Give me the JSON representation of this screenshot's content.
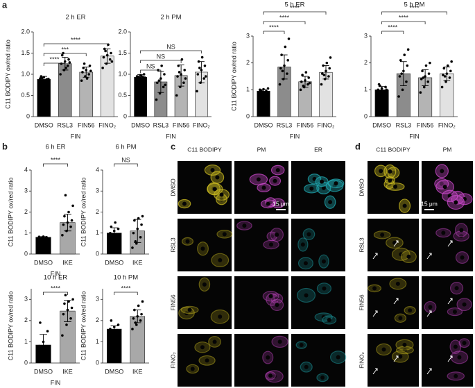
{
  "chart_data": [
    {
      "type": "bar",
      "title": "2 h ER",
      "ylabel": "C11 BODIPY ox/red ratio",
      "xlabel": "FIN",
      "categories": [
        "DMSO",
        "RSL3",
        "FIN56",
        "FINO₂"
      ],
      "colors": [
        "#000000",
        "#8c8c8c",
        "#b4b4b4",
        "#e2e2e2"
      ],
      "values": [
        0.88,
        1.25,
        1.05,
        1.43
      ],
      "errors": [
        0.07,
        0.15,
        0.12,
        0.17
      ],
      "points": [
        [
          0.82,
          0.85,
          0.88,
          0.9,
          0.93,
          0.86,
          0.95,
          0.8,
          0.89,
          0.91
        ],
        [
          1.0,
          1.1,
          1.2,
          1.25,
          1.3,
          1.35,
          1.45,
          1.15,
          1.28,
          1.5
        ],
        [
          0.85,
          0.95,
          1.0,
          1.05,
          1.1,
          1.2,
          1.15,
          0.9,
          1.08,
          1.25
        ],
        [
          1.15,
          1.25,
          1.35,
          1.4,
          1.45,
          1.5,
          1.6,
          1.7,
          1.3,
          1.55
        ]
      ],
      "ylim": [
        0,
        2
      ],
      "yticks": [
        0,
        0.5,
        {
          "value": 1,
          "label": "1.0"
        },
        1.5,
        {
          "value": 2,
          "label": "2.0"
        }
      ],
      "comparisons": [
        {
          "pair": [
            0,
            1
          ],
          "label": "****"
        },
        {
          "pair": [
            0,
            2
          ],
          "label": "***"
        },
        {
          "pair": [
            0,
            3
          ],
          "label": "****"
        }
      ]
    },
    {
      "type": "bar",
      "title": "2 h PM",
      "xlabel": "FIN",
      "categories": [
        "DMSO",
        "RSL3",
        "FIN56",
        "FINO₂"
      ],
      "colors": [
        "#000000",
        "#8c8c8c",
        "#b4b4b4",
        "#e2e2e2"
      ],
      "values": [
        0.93,
        0.82,
        0.97,
        1.05
      ],
      "errors": [
        0.06,
        0.25,
        0.25,
        0.25
      ],
      "points": [
        [
          0.85,
          0.9,
          0.93,
          0.95,
          0.98,
          1.0,
          0.88,
          0.96,
          0.92,
          0.94
        ],
        [
          0.4,
          0.55,
          0.7,
          0.8,
          0.9,
          1.0,
          1.1,
          1.2,
          0.75,
          0.85
        ],
        [
          0.5,
          0.7,
          0.8,
          0.95,
          1.0,
          1.1,
          1.2,
          1.35,
          0.9,
          1.05
        ],
        [
          0.6,
          0.8,
          0.9,
          1.0,
          1.1,
          1.2,
          1.3,
          1.4,
          0.95,
          1.15
        ]
      ],
      "ylim": [
        0,
        2
      ],
      "yticks": [
        0,
        0.5,
        {
          "value": 1,
          "label": "1.0"
        },
        1.5,
        {
          "value": 2,
          "label": "2.0"
        }
      ],
      "comparisons": [
        {
          "pair": [
            0,
            1
          ],
          "label": "NS"
        },
        {
          "pair": [
            0,
            2
          ],
          "label": "NS"
        },
        {
          "pair": [
            0,
            3
          ],
          "label": "NS"
        }
      ]
    },
    {
      "type": "bar",
      "title": "5 h ER",
      "ylabel": "C11 BODIPY ox/red ratio",
      "xlabel": "FIN",
      "categories": [
        "DMSO",
        "RSL3",
        "FIN56",
        "FINO₂"
      ],
      "colors": [
        "#000000",
        "#8c8c8c",
        "#b4b4b4",
        "#e2e2e2"
      ],
      "values": [
        0.95,
        1.85,
        1.3,
        1.65
      ],
      "errors": [
        0.06,
        0.45,
        0.2,
        0.25
      ],
      "points": [
        [
          0.85,
          0.9,
          0.95,
          1.0,
          1.02,
          0.92,
          0.97,
          0.88,
          1.05,
          0.94
        ],
        [
          1.2,
          1.4,
          1.6,
          1.8,
          1.9,
          2.1,
          2.3,
          2.6,
          2.9,
          1.7
        ],
        [
          1.0,
          1.1,
          1.2,
          1.3,
          1.35,
          1.45,
          1.55,
          1.65,
          1.25,
          1.15
        ],
        [
          1.2,
          1.4,
          1.5,
          1.6,
          1.7,
          1.8,
          1.9,
          2.0,
          2.2,
          1.55
        ]
      ],
      "ylim": [
        0,
        3
      ],
      "yticks": [
        0,
        1,
        2,
        3
      ],
      "comparisons": [
        {
          "pair": [
            0,
            1
          ],
          "label": "****"
        },
        {
          "pair": [
            0,
            2
          ],
          "label": "****"
        },
        {
          "pair": [
            0,
            3
          ],
          "label": "****"
        }
      ]
    },
    {
      "type": "bar",
      "title": "5 h PM",
      "xlabel": "FIN",
      "categories": [
        "DMSO",
        "RSL3",
        "FIN56",
        "FINO₂"
      ],
      "colors": [
        "#000000",
        "#8c8c8c",
        "#b4b4b4",
        "#e2e2e2"
      ],
      "values": [
        1.0,
        1.6,
        1.45,
        1.6
      ],
      "errors": [
        0.12,
        0.45,
        0.3,
        0.25
      ],
      "points": [
        [
          0.8,
          0.9,
          0.95,
          1.0,
          1.05,
          1.1,
          1.2,
          0.85,
          1.0,
          1.15
        ],
        [
          0.75,
          1.0,
          1.3,
          1.5,
          1.7,
          1.9,
          2.1,
          2.3,
          2.5,
          1.6
        ],
        [
          0.9,
          1.1,
          1.3,
          1.4,
          1.5,
          1.6,
          1.7,
          1.9,
          2.0,
          1.45
        ],
        [
          1.1,
          1.3,
          1.45,
          1.55,
          1.6,
          1.7,
          1.8,
          1.9,
          2.05,
          1.5
        ]
      ],
      "ylim": [
        0,
        3
      ],
      "yticks": [
        0,
        1,
        2,
        3
      ],
      "comparisons": [
        {
          "pair": [
            0,
            1
          ],
          "label": "****"
        },
        {
          "pair": [
            0,
            2
          ],
          "label": "****"
        },
        {
          "pair": [
            0,
            3
          ],
          "label": "****"
        }
      ]
    },
    {
      "type": "bar",
      "title": "6 h ER",
      "ylabel": "C11 BODIPY ox/red ratio",
      "xlabel": "FIN",
      "categories": [
        "DMSO",
        "IKE"
      ],
      "colors": [
        "#000000",
        "#a8a8a8"
      ],
      "values": [
        0.8,
        1.5
      ],
      "errors": [
        0.03,
        0.4
      ],
      "points": [
        [
          0.75,
          0.78,
          0.8,
          0.82,
          0.83
        ],
        [
          0.9,
          1.1,
          1.3,
          1.4,
          1.5,
          1.6,
          1.8,
          2.0,
          2.3,
          2.8
        ]
      ],
      "ylim": [
        0,
        4
      ],
      "yticks": [
        0,
        1,
        2,
        3,
        4
      ],
      "comparisons": [
        {
          "pair": [
            0,
            1
          ],
          "label": "****"
        }
      ]
    },
    {
      "type": "bar",
      "title": "6 h PM",
      "ylabel": "C11 BODIPY ox/red ratio",
      "categories": [
        "DMSO",
        "IKE"
      ],
      "colors": [
        "#000000",
        "#a8a8a8"
      ],
      "values": [
        1.0,
        1.1
      ],
      "errors": [
        0.25,
        0.55
      ],
      "points": [
        [
          0.7,
          0.8,
          0.9,
          1.0,
          1.1,
          1.2,
          1.3,
          1.5
        ],
        [
          0.3,
          0.5,
          0.8,
          1.0,
          1.2,
          1.4,
          1.6,
          1.7,
          1.8,
          0.6
        ]
      ],
      "ylim": [
        0,
        4
      ],
      "yticks": [
        0,
        1,
        2,
        3,
        4
      ],
      "comparisons": [
        {
          "pair": [
            0,
            1
          ],
          "label": "NS"
        }
      ]
    },
    {
      "type": "bar",
      "title": "10 h ER",
      "ylabel": "C11 BODIPY ox/red ratio",
      "xlabel": "FIN",
      "categories": [
        "DMSO",
        "IKE"
      ],
      "colors": [
        "#000000",
        "#a8a8a8"
      ],
      "values": [
        0.85,
        2.45
      ],
      "errors": [
        0.5,
        0.5
      ],
      "points": [
        [
          0.2,
          0.4,
          0.6,
          0.8,
          1.0,
          1.5,
          1.9
        ],
        [
          1.3,
          1.8,
          2.1,
          2.3,
          2.5,
          2.6,
          2.8,
          2.9,
          3.0,
          3.2
        ]
      ],
      "ylim": [
        0,
        3.5
      ],
      "yticks": [
        0,
        1,
        2,
        3
      ],
      "comparisons": [
        {
          "pair": [
            0,
            1
          ],
          "label": "****"
        }
      ]
    },
    {
      "type": "bar",
      "title": "10 h PM",
      "ylabel": "C11 BODIPY ox/red ratio",
      "categories": [
        "DMSO",
        "IKE"
      ],
      "colors": [
        "#000000",
        "#a8a8a8"
      ],
      "values": [
        1.6,
        2.2
      ],
      "errors": [
        0.15,
        0.3
      ],
      "points": [
        [
          1.3,
          1.45,
          1.55,
          1.6,
          1.7,
          1.8,
          2.0
        ],
        [
          1.6,
          1.8,
          2.0,
          2.1,
          2.2,
          2.3,
          2.5,
          2.7,
          2.9,
          1.9
        ]
      ],
      "ylim": [
        0,
        3.5
      ],
      "yticks": [
        0,
        1,
        2,
        3
      ],
      "comparisons": [
        {
          "pair": [
            0,
            1
          ],
          "label": "****"
        }
      ]
    }
  ],
  "figure": {
    "panel_labels": [
      "a",
      "b",
      "c",
      "d"
    ],
    "micrographs": [
      {
        "columns": [
          "C11 BODIPY",
          "PM",
          "ER"
        ],
        "rows": [
          "DMSO",
          "RSL3",
          "FIN56",
          "FINO₂"
        ],
        "scale_bar": "15 μm"
      },
      {
        "columns": [
          "C11 BODIPY",
          "PM"
        ],
        "rows": [
          "DMSO",
          "RSL3",
          "FIN56",
          "FINO₂"
        ],
        "scale_bar": "15 μm"
      }
    ]
  }
}
